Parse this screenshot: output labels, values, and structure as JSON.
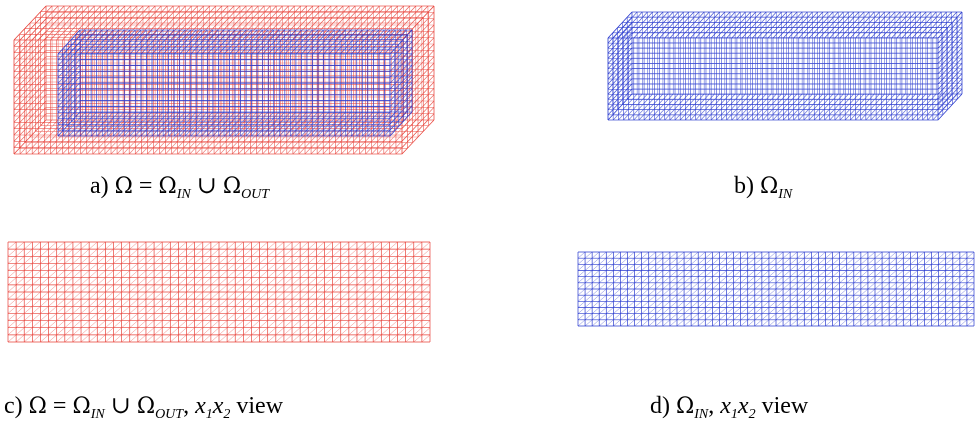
{
  "colors": {
    "outer_mesh": "#e8423a",
    "inner_mesh": "#2b3ccf"
  },
  "panels": [
    {
      "id": "a",
      "view": "3d",
      "mesh": "union",
      "caption": {
        "prefix": "a) ",
        "lhs": "Ω",
        "eq": " = ",
        "rhs1": "Ω",
        "sub1": "IN",
        "op": " ∪ ",
        "rhs2": "Ω",
        "sub2": "OUT",
        "suffix": ""
      }
    },
    {
      "id": "b",
      "view": "3d",
      "mesh": "inner",
      "caption": {
        "prefix": "b) ",
        "lhs": "Ω",
        "sub": "IN",
        "suffix": ""
      }
    },
    {
      "id": "c",
      "view": "x1x2",
      "mesh": "union",
      "caption": {
        "prefix": "c) ",
        "lhs": "Ω",
        "eq": " = ",
        "rhs1": "Ω",
        "sub1": "IN",
        "op": " ∪ ",
        "rhs2": "Ω",
        "sub2": "OUT",
        "sep": ",  ",
        "v1": "x",
        "v1sub": "1",
        "v2": "x",
        "v2sub": "2",
        "suffix": " view"
      }
    },
    {
      "id": "d",
      "view": "x1x2",
      "mesh": "inner",
      "caption": {
        "prefix": "d) ",
        "lhs": "Ω",
        "sub": "IN",
        "sep": ",  ",
        "v1": "x",
        "v1sub": "1",
        "v2": "x",
        "v2sub": "2",
        "suffix": " view"
      }
    }
  ]
}
